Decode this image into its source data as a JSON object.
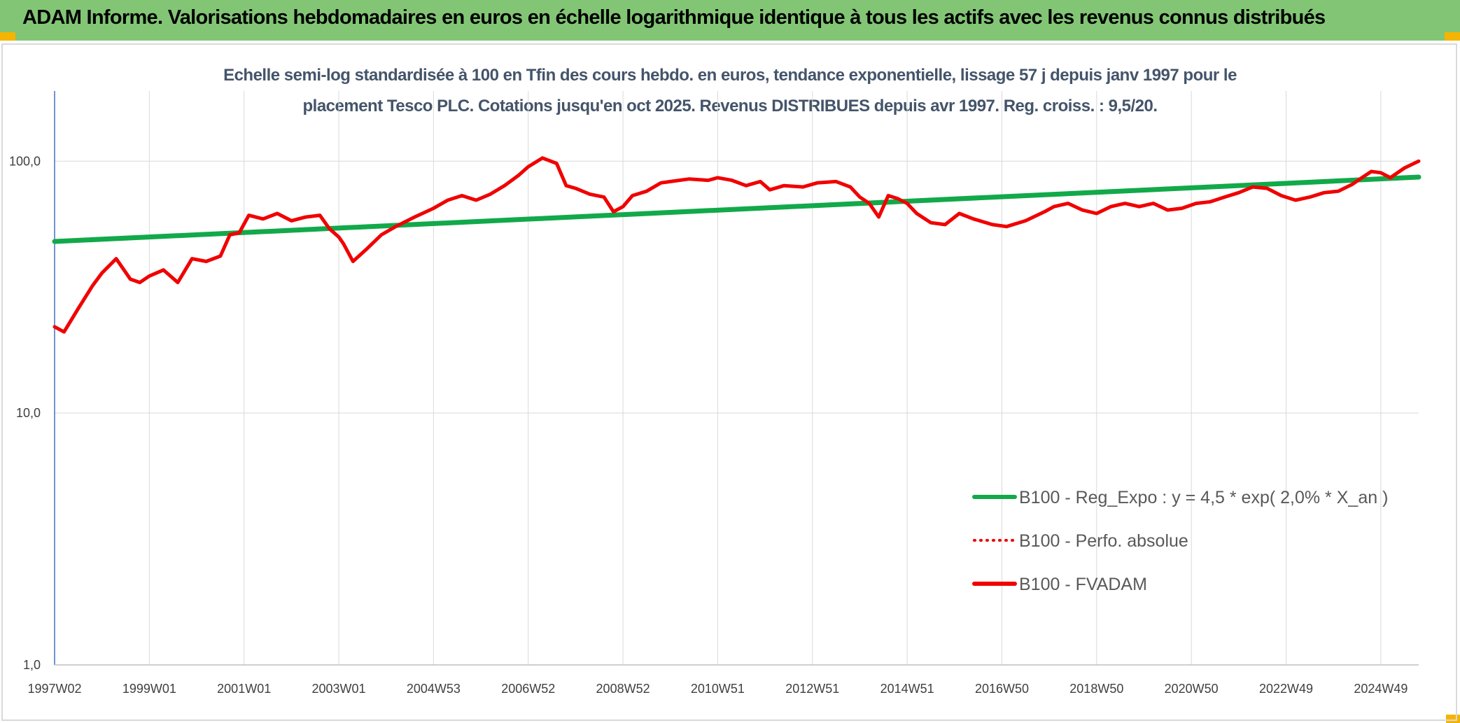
{
  "header": {
    "title": "ADAM Informe. Valorisations hebdomadaires en euros en échelle logarithmique identique à tous les actifs avec les revenus connus distribués"
  },
  "colors": {
    "header_bg": "#82c675",
    "trend_line": "#12a94a",
    "price_line": "#f00000",
    "grid": "#d9d9d9",
    "corner_accent": "#f4b400"
  },
  "chart_data": {
    "type": "line",
    "title": "Echelle semi-log standardisée à 100 en Tfin des cours hebdo. en euros, tendance exponentielle, lissage 57 j depuis janv 1997 pour le placement Tesco PLC. Cotations jusqu'en oct 2025. Revenus DISTRIBUES depuis avr 1997. Reg. croiss. : 9,5/20.",
    "title_lines": [
      "Echelle semi-log standardisée à 100 en Tfin des cours hebdo. en euros, tendance exponentielle, lissage 57 j depuis janv 1997 pour le",
      "placement Tesco PLC. Cotations jusqu'en oct 2025. Revenus DISTRIBUES depuis avr 1997. Reg. croiss. : 9,5/20."
    ],
    "xlabel": "",
    "ylabel": "",
    "y_scale": "log",
    "ylim": [
      1,
      190
    ],
    "xlim": [
      1997.0,
      2025.8
    ],
    "grid": true,
    "legend_position": "bottom-right",
    "y_ticks": [
      {
        "value": 1,
        "label": "1,0"
      },
      {
        "value": 10,
        "label": "10,0"
      },
      {
        "value": 100,
        "label": "100,0"
      }
    ],
    "x_ticks": [
      {
        "value": 1997.0,
        "label": "1997W02"
      },
      {
        "value": 1999.0,
        "label": "1999W01"
      },
      {
        "value": 2001.0,
        "label": "2001W01"
      },
      {
        "value": 2003.0,
        "label": "2003W01"
      },
      {
        "value": 2005.0,
        "label": "2004W53"
      },
      {
        "value": 2007.0,
        "label": "2006W52"
      },
      {
        "value": 2009.0,
        "label": "2008W52"
      },
      {
        "value": 2011.0,
        "label": "2010W51"
      },
      {
        "value": 2013.0,
        "label": "2012W51"
      },
      {
        "value": 2015.0,
        "label": "2014W51"
      },
      {
        "value": 2017.0,
        "label": "2016W50"
      },
      {
        "value": 2019.0,
        "label": "2018W50"
      },
      {
        "value": 2021.0,
        "label": "2020W50"
      },
      {
        "value": 2023.0,
        "label": "2022W49"
      },
      {
        "value": 2025.0,
        "label": "2024W49"
      }
    ],
    "series": [
      {
        "name": "B100 - Reg_Expo : y = 4,5 * exp( 2,0% *  X_an )",
        "color": "#12a94a",
        "style": "solid",
        "x": [
          1997.0,
          2025.8
        ],
        "y": [
          48,
          86.5
        ]
      },
      {
        "name": "B100 - Perfo. absolue",
        "color": "#f00000",
        "style": "dotted",
        "x": [],
        "y": []
      },
      {
        "name": "B100 - FVADAM",
        "color": "#f00000",
        "style": "solid",
        "x": [
          1997.0,
          1997.2,
          1997.5,
          1997.8,
          1998.0,
          1998.3,
          1998.6,
          1998.8,
          1999.0,
          1999.3,
          1999.6,
          1999.9,
          2000.2,
          2000.5,
          2000.7,
          2000.9,
          2001.1,
          2001.4,
          2001.7,
          2002.0,
          2002.3,
          2002.6,
          2002.8,
          2003.0,
          2003.1,
          2003.3,
          2003.6,
          2003.9,
          2004.2,
          2004.6,
          2005.0,
          2005.3,
          2005.6,
          2005.9,
          2006.2,
          2006.5,
          2006.8,
          2007.0,
          2007.3,
          2007.6,
          2007.8,
          2008.0,
          2008.3,
          2008.6,
          2008.8,
          2009.0,
          2009.2,
          2009.5,
          2009.8,
          2010.0,
          2010.4,
          2010.8,
          2011.0,
          2011.3,
          2011.6,
          2011.9,
          2012.1,
          2012.4,
          2012.8,
          2013.1,
          2013.5,
          2013.8,
          2014.0,
          2014.2,
          2014.4,
          2014.6,
          2014.8,
          2015.0,
          2015.2,
          2015.5,
          2015.8,
          2016.1,
          2016.4,
          2016.8,
          2017.1,
          2017.5,
          2017.9,
          2018.1,
          2018.4,
          2018.7,
          2019.0,
          2019.3,
          2019.6,
          2019.9,
          2020.2,
          2020.5,
          2020.8,
          2021.1,
          2021.4,
          2021.7,
          2022.0,
          2022.3,
          2022.6,
          2022.9,
          2023.2,
          2023.5,
          2023.8,
          2024.1,
          2024.4,
          2024.6,
          2024.8,
          2025.0,
          2025.2,
          2025.5,
          2025.8
        ],
        "y": [
          22,
          21,
          26,
          32,
          36,
          41,
          34,
          33,
          35,
          37,
          33,
          41,
          40,
          42,
          51,
          52,
          61,
          59,
          62,
          58,
          60,
          61,
          54,
          50,
          47,
          40,
          45,
          51,
          55,
          60,
          65,
          70,
          73,
          70,
          74,
          80,
          88,
          95,
          103,
          98,
          80,
          78,
          74,
          72,
          63,
          66,
          73,
          76,
          82,
          83,
          85,
          84,
          86,
          84,
          80,
          83,
          77,
          80,
          79,
          82,
          83,
          79,
          72,
          68,
          60,
          73,
          71,
          68,
          62,
          57,
          56,
          62,
          59,
          56,
          55,
          58,
          63,
          66,
          68,
          64,
          62,
          66,
          68,
          66,
          68,
          64,
          65,
          68,
          69,
          72,
          75,
          79,
          78,
          73,
          70,
          72,
          75,
          76,
          81,
          86,
          91,
          90,
          86,
          94,
          100
        ]
      }
    ]
  }
}
